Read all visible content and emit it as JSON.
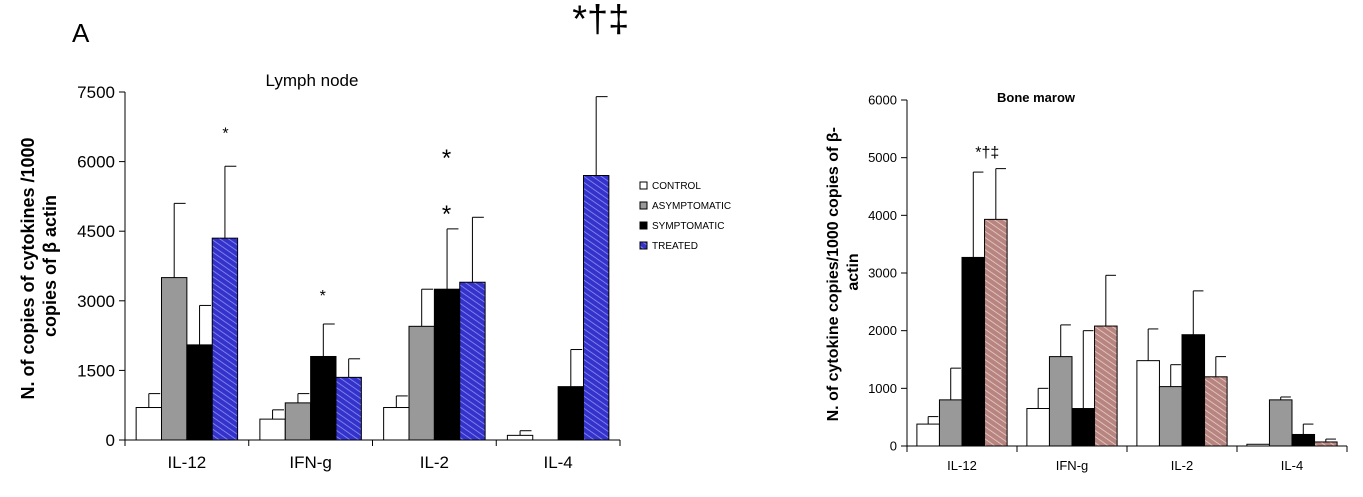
{
  "panel_label": "A",
  "legend": {
    "entries": [
      "CONTROL",
      "ASYMPTOMATIC",
      "SYMPTOMATIC",
      "TREATED"
    ]
  },
  "series_styles": [
    {
      "fill": "#ffffff",
      "pattern": "none"
    },
    {
      "fill": "#999999",
      "pattern": "none"
    },
    {
      "fill": "#000000",
      "pattern": "none"
    },
    {
      "fill": "#3333cc",
      "pattern": "hatch"
    }
  ],
  "chart_data": [
    {
      "type": "bar",
      "title": "Lymph node",
      "xlabel": "",
      "ylabel": "N. of copies of cytokines /1000 copies of β actin",
      "ylim": [
        0,
        7500
      ],
      "yticks": [
        0,
        1500,
        3000,
        4500,
        6000,
        7500
      ],
      "categories": [
        "IL-12",
        "IFN-g",
        "IL-2",
        "IL-4"
      ],
      "series": [
        {
          "name": "CONTROL",
          "values": [
            700,
            450,
            700,
            100
          ],
          "errors": [
            300,
            200,
            250,
            100
          ]
        },
        {
          "name": "ASYMPTOMATIC",
          "values": [
            3500,
            800,
            2450,
            0
          ],
          "errors": [
            1600,
            200,
            800,
            0
          ]
        },
        {
          "name": "SYMPTOMATIC",
          "values": [
            2050,
            1800,
            3250,
            1150
          ],
          "errors": [
            850,
            700,
            1300,
            800
          ]
        },
        {
          "name": "TREATED",
          "values": [
            4350,
            1350,
            3400,
            5700
          ],
          "errors": [
            1550,
            400,
            1400,
            1700
          ]
        }
      ],
      "annotations": [
        {
          "text": "*",
          "category": "IL-12",
          "y": 6500
        },
        {
          "text": "*",
          "category": "IFN-g",
          "y": 3000
        },
        {
          "text": "*",
          "category": "IL-2",
          "y": 5900
        },
        {
          "text": "*",
          "category": "IL-2",
          "y": 4700
        },
        {
          "text": "*†‡",
          "category": "IL-4",
          "y": 8800
        }
      ],
      "grid": false,
      "legend_position": "right"
    },
    {
      "type": "bar",
      "title": "Bone marow",
      "xlabel": "",
      "ylabel": "N. of cytokine copies/1000 copies of β-actin",
      "ylim": [
        0,
        6000
      ],
      "yticks": [
        0,
        1000,
        2000,
        3000,
        4000,
        5000,
        6000
      ],
      "categories": [
        "IL-12",
        "IFN-g",
        "IL-2",
        "IL-4"
      ],
      "series": [
        {
          "name": "CONTROL",
          "values": [
            380,
            650,
            1480,
            30
          ],
          "errors": [
            130,
            350,
            550,
            0
          ]
        },
        {
          "name": "ASYMPTOMATIC",
          "values": [
            800,
            1550,
            1030,
            800
          ],
          "errors": [
            550,
            550,
            380,
            50
          ]
        },
        {
          "name": "SYMPTOMATIC",
          "values": [
            3270,
            650,
            1930,
            200
          ],
          "errors": [
            1480,
            1350,
            760,
            180
          ]
        },
        {
          "name": "TREATED",
          "values": [
            3930,
            2080,
            1200,
            70
          ],
          "errors": [
            880,
            880,
            350,
            50
          ]
        }
      ],
      "annotations": [
        {
          "text": "*†‡",
          "category": "IL-12",
          "y": 5000
        }
      ],
      "grid": false,
      "legend_position": "none"
    }
  ]
}
